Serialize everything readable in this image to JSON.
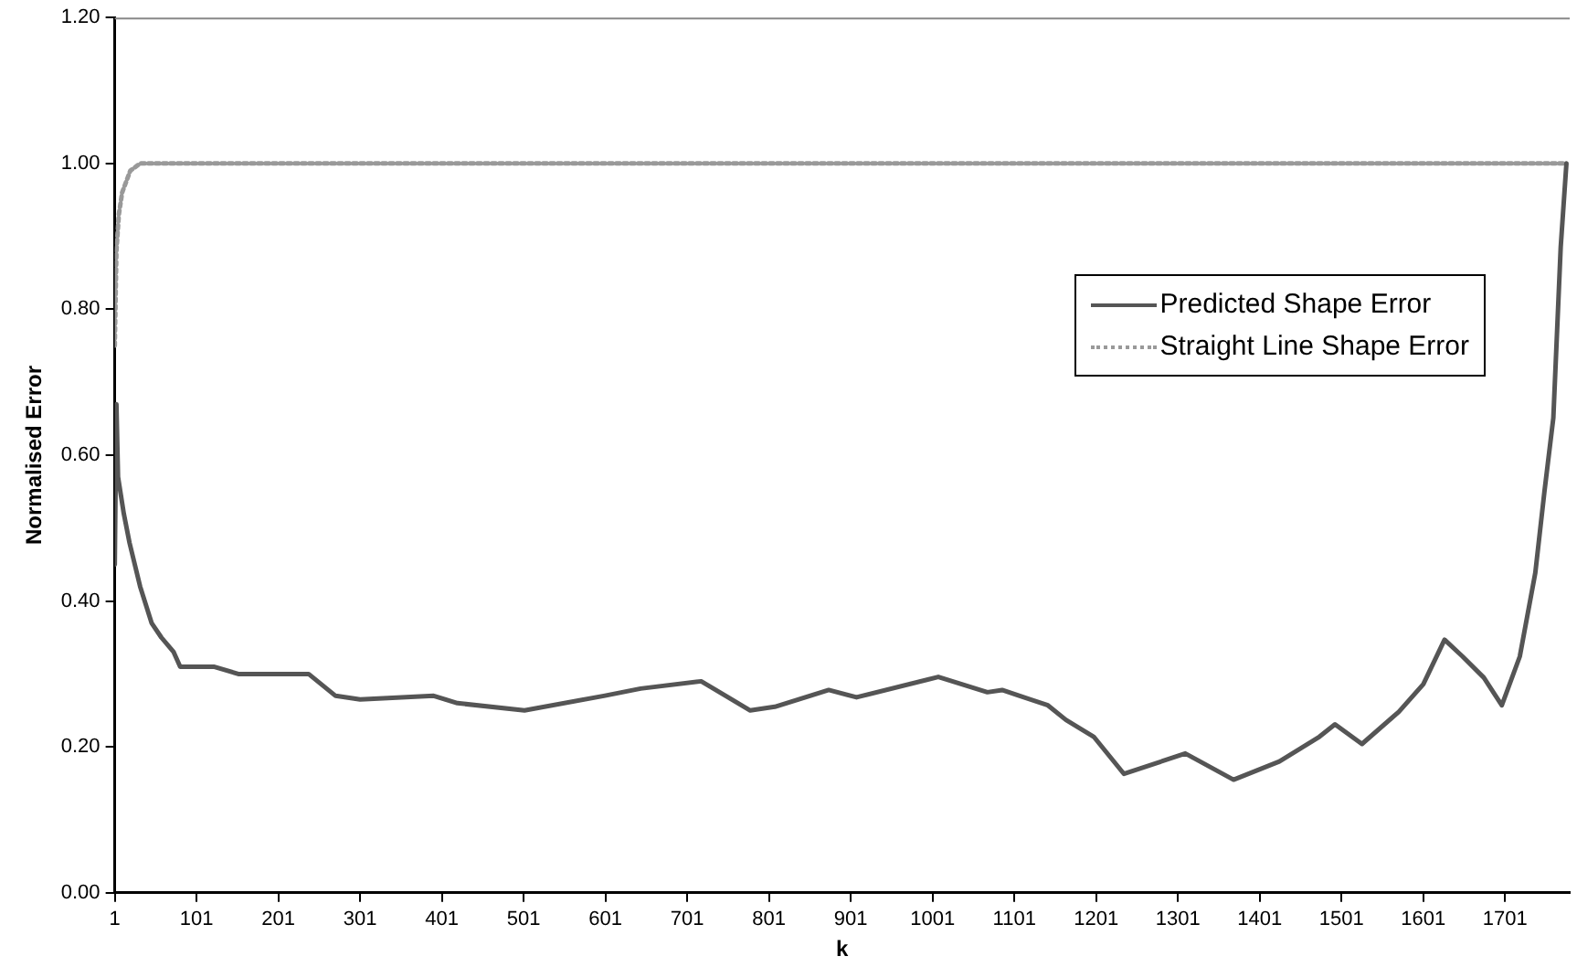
{
  "chart_data": {
    "type": "line",
    "xlabel": "k",
    "ylabel": "Normalised Error",
    "xlim": [
      1,
      1780
    ],
    "xticks": [
      1,
      101,
      201,
      301,
      401,
      501,
      601,
      701,
      801,
      901,
      1001,
      1101,
      1201,
      1301,
      1401,
      1501,
      1601,
      1701
    ],
    "ylim": [
      0,
      1.2
    ],
    "yticks": [
      {
        "value": 0,
        "label": "0.00"
      },
      {
        "value": 0.2,
        "label": "0.20"
      },
      {
        "value": 0.4,
        "label": "0.40"
      },
      {
        "value": 0.6,
        "label": "0.60"
      },
      {
        "value": 0.8,
        "label": "0.80"
      },
      {
        "value": 1,
        "label": "1.00"
      },
      {
        "value": 1.2,
        "label": "1.20"
      }
    ],
    "grid": false,
    "legend": "top right",
    "marker": "none",
    "series": [
      {
        "name": "Predicted Shape Error",
        "color": "#555555",
        "line_style": "solid",
        "x": [
          1,
          3,
          5,
          12,
          19,
          32,
          46,
          58,
          73,
          81,
          107,
          122,
          152,
          182,
          204,
          238,
          271,
          301,
          391,
          420,
          502,
          599,
          644,
          718,
          778,
          808,
          874,
          908,
          1008,
          1068,
          1086,
          1142,
          1164,
          1198,
          1235,
          1310,
          1369,
          1425,
          1474,
          1493,
          1526,
          1571,
          1601,
          1627,
          1649,
          1675,
          1697,
          1719,
          1738,
          1749,
          1760,
          1769,
          1776
        ],
        "values": [
          0.45,
          0.67,
          0.57,
          0.52,
          0.48,
          0.42,
          0.37,
          0.35,
          0.33,
          0.31,
          0.31,
          0.31,
          0.3,
          0.3,
          0.3,
          0.3,
          0.27,
          0.265,
          0.27,
          0.26,
          0.25,
          0.27,
          0.28,
          0.29,
          0.25,
          0.255,
          0.278,
          0.268,
          0.296,
          0.275,
          0.278,
          0.257,
          0.237,
          0.214,
          0.163,
          0.191,
          0.155,
          0.18,
          0.214,
          0.231,
          0.204,
          0.248,
          0.286,
          0.347,
          0.324,
          0.295,
          0.257,
          0.324,
          0.439,
          0.549,
          0.651,
          0.885,
          1.0
        ]
      },
      {
        "name": "Straight Line Shape Error",
        "color": "#999999",
        "line_style": "dotted",
        "x": [
          1,
          3,
          6,
          10,
          20,
          32,
          1776
        ],
        "values": [
          0.75,
          0.88,
          0.93,
          0.96,
          0.99,
          1.0,
          1.0
        ]
      }
    ]
  }
}
